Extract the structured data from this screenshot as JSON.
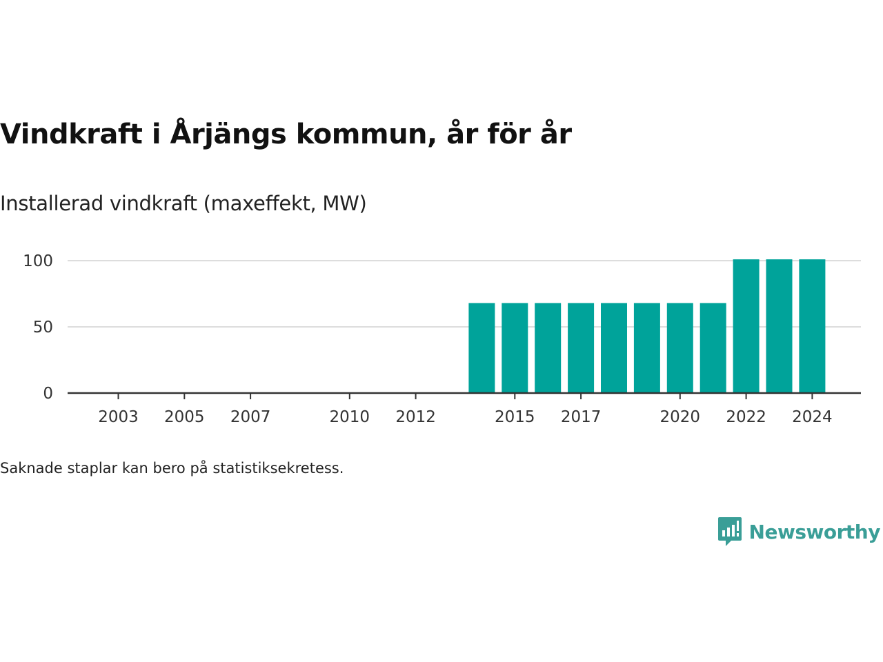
{
  "title": "Vindkraft i Årjängs kommun, år för år",
  "subtitle": "Installerad vindkraft (maxeffekt, MW)",
  "footnote": "Saknade staplar kan bero på statistiksekretess.",
  "logo": {
    "text": "Newsworthy",
    "icon": "chart-bubble-icon",
    "color": "#3a9e97"
  },
  "colors": {
    "bar": "#00a39a",
    "grid": "#dddddd",
    "axis": "#333333"
  },
  "chart_data": {
    "type": "bar",
    "title": "Vindkraft i Årjängs kommun, år för år",
    "ylabel": "Installerad vindkraft (maxeffekt, MW)",
    "xlabel": "",
    "categories": [
      2003,
      2004,
      2005,
      2006,
      2007,
      2008,
      2009,
      2010,
      2011,
      2012,
      2013,
      2014,
      2015,
      2016,
      2017,
      2018,
      2019,
      2020,
      2021,
      2022,
      2023,
      2024
    ],
    "values": [
      null,
      null,
      null,
      null,
      null,
      null,
      null,
      null,
      null,
      null,
      null,
      68,
      68,
      68,
      68,
      68,
      68,
      68,
      68,
      101,
      101,
      101
    ],
    "x_ticks": [
      2003,
      2005,
      2007,
      2010,
      2012,
      2015,
      2017,
      2020,
      2022,
      2024
    ],
    "y_ticks": [
      0,
      50,
      100
    ],
    "ylim": [
      0,
      100
    ],
    "grid": true
  }
}
